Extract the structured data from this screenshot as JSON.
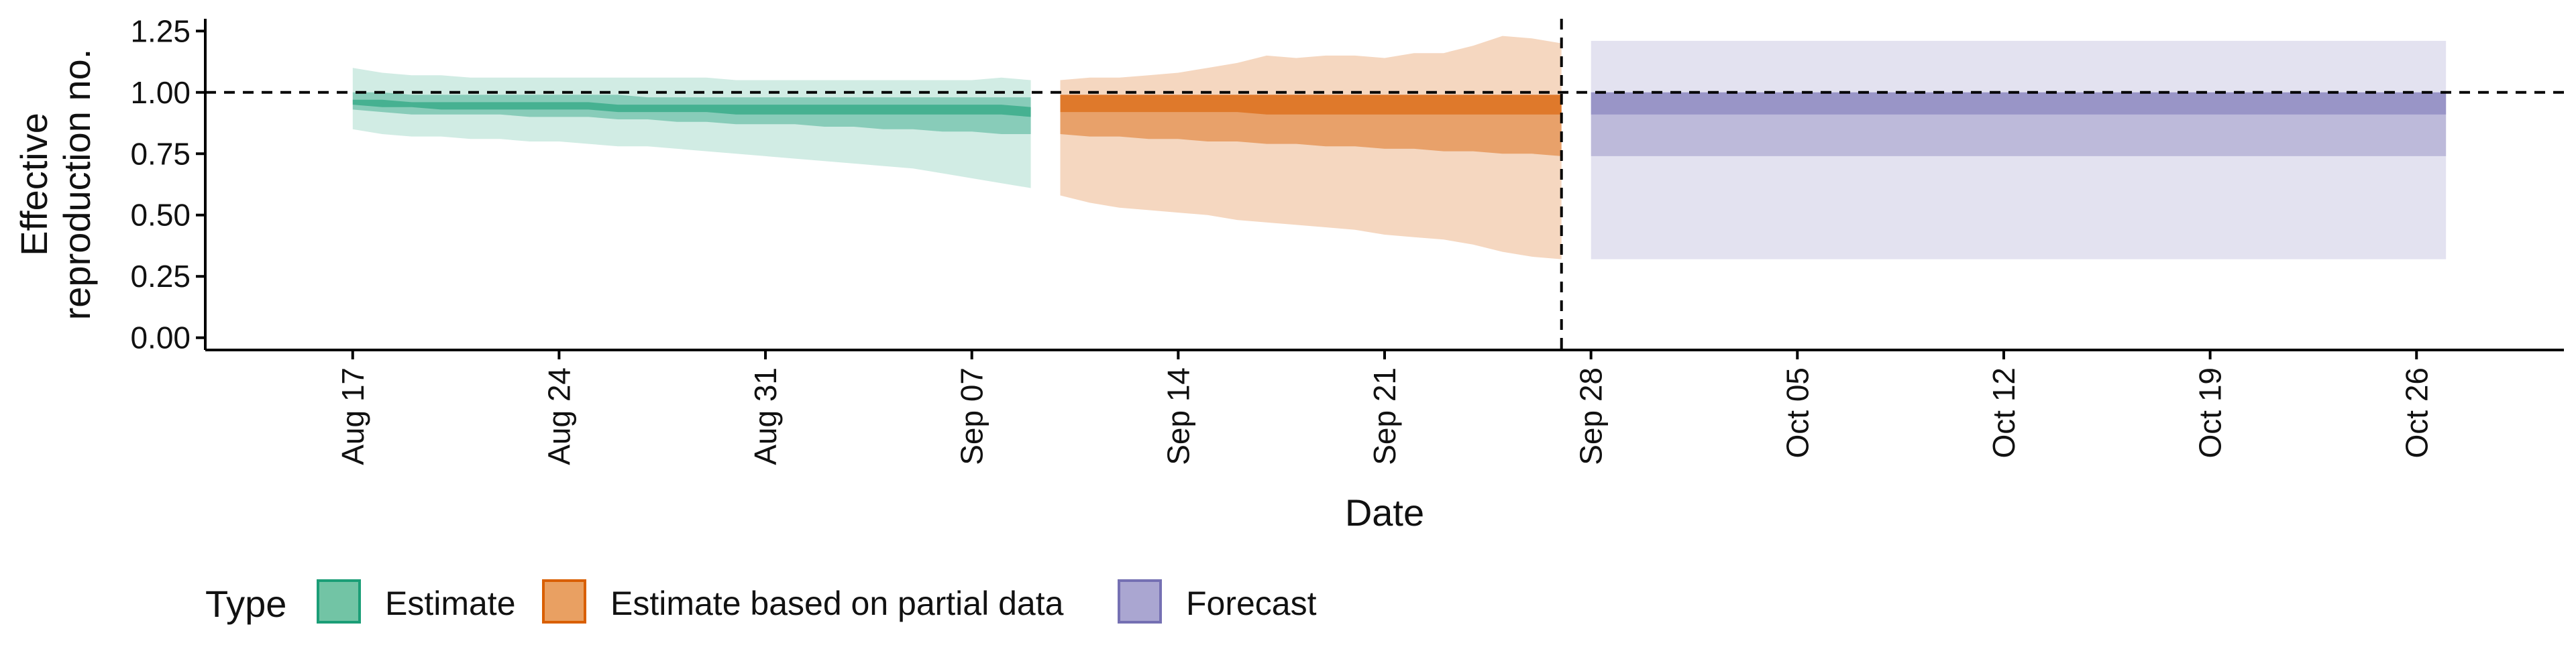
{
  "chart_data": {
    "type": "area",
    "xlabel": "Date",
    "ylabel_lines": [
      "Effective",
      "reproduction no."
    ],
    "ylim": [
      -0.05,
      1.3
    ],
    "y_ticks": [
      0.0,
      0.25,
      0.5,
      0.75,
      1.0,
      1.25
    ],
    "y_tick_labels": [
      "0.00",
      "0.25",
      "0.50",
      "0.75",
      "1.00",
      "1.25"
    ],
    "xlim": [
      "2020-08-12",
      "2020-10-31"
    ],
    "x_ticks": [
      "2020-08-17",
      "2020-08-24",
      "2020-08-31",
      "2020-09-07",
      "2020-09-14",
      "2020-09-21",
      "2020-09-28",
      "2020-10-05",
      "2020-10-12",
      "2020-10-19",
      "2020-10-26"
    ],
    "x_tick_labels": [
      "Aug 17",
      "Aug 24",
      "Aug 31",
      "Sep 07",
      "Sep 14",
      "Sep 21",
      "Sep 28",
      "Oct 05",
      "Oct 12",
      "Oct 19",
      "Oct 26"
    ],
    "reference_line_y": 1.0,
    "vertical_line_x": "2020-09-27",
    "legend": {
      "title": "Type",
      "position": "bottom-left",
      "entries": [
        {
          "label": "Estimate",
          "fill": "#72c4a5",
          "stroke": "#1b9e77"
        },
        {
          "label": "Estimate based on partial data",
          "fill": "#e9a062",
          "stroke": "#d95f02"
        },
        {
          "label": "Forecast",
          "fill": "#aaa6d1",
          "stroke": "#7570b3"
        }
      ]
    },
    "series": [
      {
        "name": "Estimate",
        "color": "#1b9e77",
        "dates": [
          "2020-08-17",
          "2020-08-18",
          "2020-08-19",
          "2020-08-20",
          "2020-08-21",
          "2020-08-22",
          "2020-08-23",
          "2020-08-24",
          "2020-08-25",
          "2020-08-26",
          "2020-08-27",
          "2020-08-28",
          "2020-08-29",
          "2020-08-30",
          "2020-08-31",
          "2020-09-01",
          "2020-09-02",
          "2020-09-03",
          "2020-09-04",
          "2020-09-05",
          "2020-09-06",
          "2020-09-07",
          "2020-09-08",
          "2020-09-09"
        ],
        "bands": [
          {
            "level": "90%",
            "opacity": 0.2,
            "lower": [
              0.85,
              0.83,
              0.82,
              0.82,
              0.81,
              0.81,
              0.8,
              0.8,
              0.79,
              0.78,
              0.78,
              0.77,
              0.76,
              0.75,
              0.74,
              0.73,
              0.72,
              0.71,
              0.7,
              0.69,
              0.67,
              0.65,
              0.63,
              0.61
            ],
            "upper": [
              1.1,
              1.08,
              1.07,
              1.07,
              1.06,
              1.06,
              1.06,
              1.06,
              1.06,
              1.06,
              1.06,
              1.06,
              1.06,
              1.05,
              1.05,
              1.05,
              1.05,
              1.05,
              1.05,
              1.05,
              1.05,
              1.05,
              1.06,
              1.05
            ]
          },
          {
            "level": "50%",
            "opacity": 0.4,
            "lower": [
              0.93,
              0.92,
              0.91,
              0.91,
              0.91,
              0.91,
              0.9,
              0.9,
              0.9,
              0.89,
              0.89,
              0.88,
              0.88,
              0.87,
              0.87,
              0.87,
              0.86,
              0.86,
              0.85,
              0.85,
              0.84,
              0.84,
              0.83,
              0.83
            ],
            "upper": [
              1.0,
              1.0,
              0.99,
              0.99,
              0.99,
              0.99,
              0.99,
              0.99,
              0.99,
              0.99,
              0.98,
              0.98,
              0.98,
              0.98,
              0.98,
              0.98,
              0.98,
              0.98,
              0.98,
              0.98,
              0.98,
              0.98,
              0.98,
              0.98
            ]
          },
          {
            "level": "20%",
            "opacity": 0.6,
            "lower": [
              0.95,
              0.94,
              0.94,
              0.93,
              0.93,
              0.93,
              0.93,
              0.93,
              0.93,
              0.92,
              0.92,
              0.92,
              0.92,
              0.91,
              0.91,
              0.91,
              0.91,
              0.91,
              0.91,
              0.91,
              0.91,
              0.91,
              0.91,
              0.9
            ],
            "upper": [
              0.97,
              0.97,
              0.96,
              0.96,
              0.96,
              0.96,
              0.96,
              0.96,
              0.96,
              0.95,
              0.95,
              0.95,
              0.95,
              0.95,
              0.95,
              0.95,
              0.95,
              0.95,
              0.95,
              0.95,
              0.95,
              0.95,
              0.95,
              0.94
            ]
          }
        ]
      },
      {
        "name": "Estimate based on partial data",
        "color": "#d95f02",
        "dates": [
          "2020-09-10",
          "2020-09-11",
          "2020-09-12",
          "2020-09-13",
          "2020-09-14",
          "2020-09-15",
          "2020-09-16",
          "2020-09-17",
          "2020-09-18",
          "2020-09-19",
          "2020-09-20",
          "2020-09-21",
          "2020-09-22",
          "2020-09-23",
          "2020-09-24",
          "2020-09-25",
          "2020-09-26",
          "2020-09-27"
        ],
        "bands": [
          {
            "level": "90%",
            "opacity": 0.25,
            "lower": [
              0.58,
              0.55,
              0.53,
              0.52,
              0.51,
              0.5,
              0.48,
              0.47,
              0.46,
              0.45,
              0.44,
              0.42,
              0.41,
              0.4,
              0.38,
              0.35,
              0.33,
              0.32
            ],
            "upper": [
              1.05,
              1.06,
              1.06,
              1.07,
              1.08,
              1.1,
              1.12,
              1.15,
              1.14,
              1.15,
              1.15,
              1.14,
              1.16,
              1.16,
              1.19,
              1.23,
              1.22,
              1.2
            ]
          },
          {
            "level": "50%",
            "opacity": 0.45,
            "lower": [
              0.83,
              0.82,
              0.82,
              0.81,
              0.81,
              0.8,
              0.8,
              0.79,
              0.79,
              0.78,
              0.78,
              0.77,
              0.77,
              0.76,
              0.76,
              0.75,
              0.75,
              0.74
            ]
          },
          {
            "level": "20%",
            "opacity": 0.6,
            "lower": [
              0.92,
              0.92,
              0.92,
              0.92,
              0.92,
              0.92,
              0.92,
              0.91,
              0.91,
              0.91,
              0.91,
              0.91,
              0.91,
              0.91,
              0.91,
              0.91,
              0.91,
              0.91
            ],
            "upper": [
              0.99,
              0.99,
              0.99,
              0.99,
              0.99,
              0.99,
              0.99,
              0.99,
              0.99,
              0.99,
              0.99,
              0.99,
              0.99,
              0.99,
              0.99,
              0.99,
              0.99,
              0.99
            ]
          }
        ]
      },
      {
        "name": "Forecast",
        "color": "#7570b3",
        "dates": [
          "2020-09-28",
          "2020-10-27"
        ],
        "bands": [
          {
            "level": "90%",
            "opacity": 0.2,
            "lower": [
              0.32,
              0.32
            ],
            "upper": [
              1.21,
              1.21
            ]
          },
          {
            "level": "50%",
            "opacity": 0.35,
            "lower": [
              0.74,
              0.74
            ],
            "upper": [
              1.0,
              1.0
            ]
          },
          {
            "level": "20%",
            "opacity": 0.5,
            "lower": [
              0.91,
              0.91
            ],
            "upper": [
              1.0,
              1.0
            ]
          }
        ]
      }
    ]
  }
}
